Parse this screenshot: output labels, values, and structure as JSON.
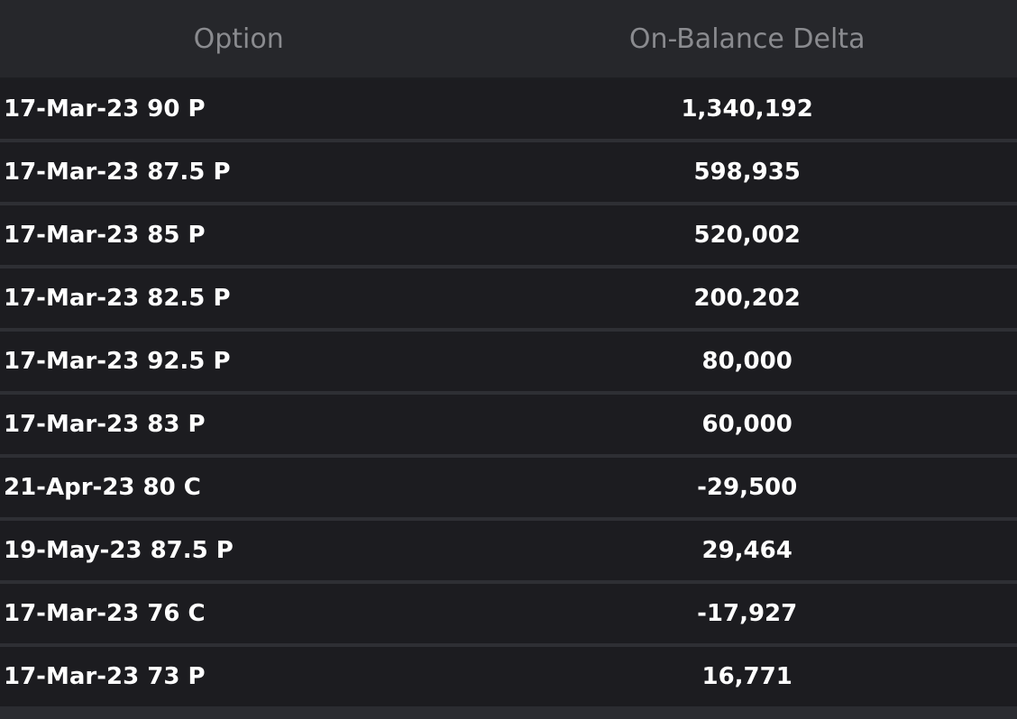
{
  "table": {
    "columns": [
      "Option",
      "On-Balance Delta"
    ],
    "rows": [
      {
        "option": "17-Mar-23 90 P",
        "delta": "1,340,192"
      },
      {
        "option": "17-Mar-23 87.5 P",
        "delta": "598,935"
      },
      {
        "option": "17-Mar-23 85 P",
        "delta": "520,002"
      },
      {
        "option": "17-Mar-23 82.5 P",
        "delta": "200,202"
      },
      {
        "option": "17-Mar-23 92.5 P",
        "delta": "80,000"
      },
      {
        "option": "17-Mar-23 83 P",
        "delta": "60,000"
      },
      {
        "option": "21-Apr-23 80 C",
        "delta": "-29,500"
      },
      {
        "option": "19-May-23 87.5 P",
        "delta": "29,464"
      },
      {
        "option": "17-Mar-23 76 C",
        "delta": "-17,927"
      },
      {
        "option": "17-Mar-23 73 P",
        "delta": "16,771"
      }
    ]
  },
  "colors": {
    "background": "#2b2c31",
    "header_bg": "#26272b",
    "row_bg": "#1c1c20",
    "header_text": "#8a8b8f",
    "cell_text": "#ffffff"
  }
}
